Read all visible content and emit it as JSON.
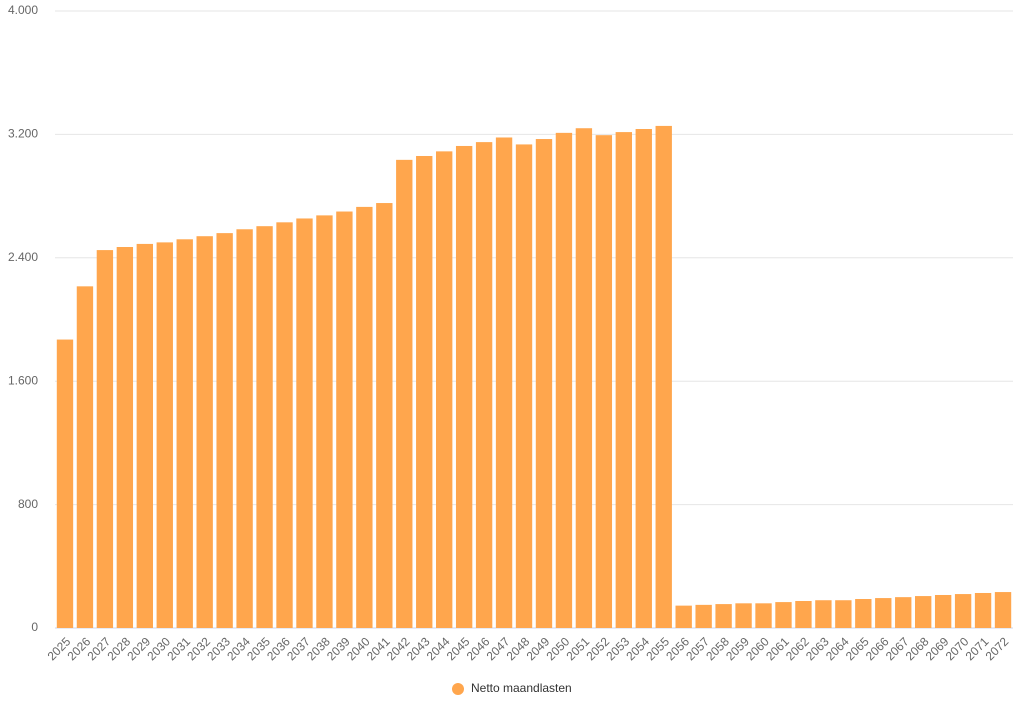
{
  "chart_data": {
    "type": "bar",
    "categories": [
      "2025",
      "2026",
      "2027",
      "2028",
      "2029",
      "2030",
      "2031",
      "2032",
      "2033",
      "2034",
      "2035",
      "2036",
      "2037",
      "2038",
      "2039",
      "2040",
      "2041",
      "2042",
      "2043",
      "2044",
      "2045",
      "2046",
      "2047",
      "2048",
      "2049",
      "2050",
      "2051",
      "2052",
      "2053",
      "2054",
      "2055",
      "2056",
      "2057",
      "2058",
      "2059",
      "2060",
      "2061",
      "2062",
      "2063",
      "2064",
      "2065",
      "2066",
      "2067",
      "2068",
      "2069",
      "2070",
      "2071",
      "2072"
    ],
    "series": [
      {
        "name": "Netto maandlasten",
        "color": "#ffa64d",
        "values": [
          1870,
          2215,
          2450,
          2470,
          2490,
          2500,
          2520,
          2540,
          2560,
          2585,
          2605,
          2630,
          2655,
          2675,
          2700,
          2730,
          2755,
          3035,
          3060,
          3090,
          3125,
          3150,
          3180,
          3135,
          3170,
          3210,
          3240,
          3195,
          3215,
          3235,
          3255,
          145,
          150,
          155,
          160,
          160,
          168,
          175,
          180,
          180,
          188,
          194,
          200,
          207,
          214,
          220,
          227,
          233
        ]
      }
    ],
    "ylim": [
      0,
      4000
    ],
    "yticks": [
      0,
      {
        "value": 800,
        "label": "800"
      },
      {
        "value": 1600,
        "label": "1.600"
      },
      {
        "value": 2400,
        "label": "2.400"
      },
      {
        "value": 3200,
        "label": "3.200"
      },
      {
        "value": 4000,
        "label": "4.000"
      }
    ],
    "grid": true,
    "legend": "bottom"
  }
}
